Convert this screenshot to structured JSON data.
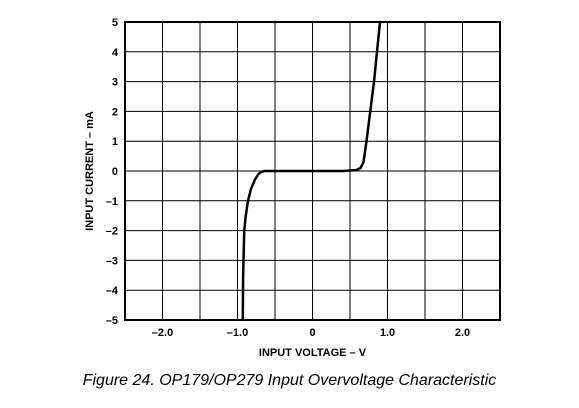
{
  "caption": "Figure 24.  OP179/OP279 Input Overvoltage Characteristic",
  "chart_data": {
    "type": "line",
    "xlabel": "INPUT VOLTAGE – V",
    "ylabel": "INPUT CURRENT – mA",
    "xlim": [
      -2.5,
      2.5
    ],
    "ylim": [
      -5,
      5
    ],
    "x_grid_step": 0.5,
    "y_grid_step": 1,
    "x_ticks": [
      {
        "value": -2.0,
        "label": "–2.0"
      },
      {
        "value": -1.0,
        "label": "–1.0"
      },
      {
        "value": 0,
        "label": "0"
      },
      {
        "value": 1.0,
        "label": "1.0"
      },
      {
        "value": 2.0,
        "label": "2.0"
      }
    ],
    "y_ticks": [
      {
        "value": 5,
        "label": "5"
      },
      {
        "value": 4,
        "label": "4"
      },
      {
        "value": 3,
        "label": "3"
      },
      {
        "value": 2,
        "label": "2"
      },
      {
        "value": 1,
        "label": "1"
      },
      {
        "value": 0,
        "label": "0"
      },
      {
        "value": -1,
        "label": "–1"
      },
      {
        "value": -2,
        "label": "–2"
      },
      {
        "value": -3,
        "label": "–3"
      },
      {
        "value": -4,
        "label": "–4"
      },
      {
        "value": -5,
        "label": "–5"
      }
    ],
    "grid": true,
    "series": [
      {
        "x": [
          -0.93,
          -0.925,
          -0.91,
          -0.89,
          -0.86,
          -0.82,
          -0.77,
          -0.72,
          -0.68,
          -0.64,
          -0.5,
          0,
          0.4,
          0.58,
          0.64,
          0.68,
          0.72,
          0.77,
          0.82,
          0.86,
          0.9
        ],
        "y": [
          -5,
          -3.5,
          -2.0,
          -1.5,
          -1.0,
          -0.6,
          -0.3,
          -0.1,
          -0.03,
          0,
          0,
          0,
          0,
          0.03,
          0.1,
          0.3,
          1.0,
          2.0,
          3.0,
          4.0,
          5.0
        ]
      }
    ]
  }
}
